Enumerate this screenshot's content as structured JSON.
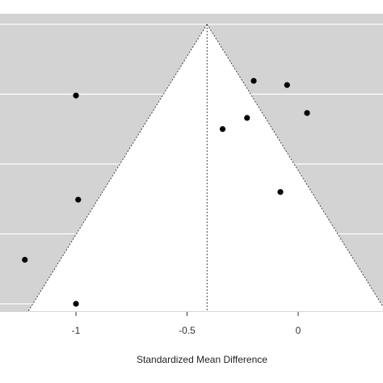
{
  "chart_data": {
    "type": "scatter",
    "subtype": "funnel",
    "title": "",
    "xlabel": "Standardized Mean Difference",
    "ylabel": "",
    "xlim": [
      -1.35,
      0.38
    ],
    "ylim": [
      0.4105,
      0.0
    ],
    "y_axis_inverted": true,
    "x_ticks": [
      -1,
      -0.5,
      0
    ],
    "x_tick_labels": [
      "-1",
      "-0.5",
      "0"
    ],
    "y_gridlines": [
      0.0,
      0.1,
      0.2,
      0.3,
      0.4
    ],
    "y_tick_labels_visible": false,
    "grid": true,
    "summary_estimate": -0.41,
    "funnel_halfwidth_per_se": 1.96,
    "points": [
      {
        "x": -1.0,
        "y": 0.102
      },
      {
        "x": -0.99,
        "y": 0.251
      },
      {
        "x": -1.23,
        "y": 0.337
      },
      {
        "x": -1.0,
        "y": 0.4
      },
      {
        "x": -0.34,
        "y": 0.15
      },
      {
        "x": -0.23,
        "y": 0.134
      },
      {
        "x": -0.2,
        "y": 0.081
      },
      {
        "x": -0.05,
        "y": 0.087
      },
      {
        "x": 0.04,
        "y": 0.127
      },
      {
        "x": -0.08,
        "y": 0.24
      }
    ],
    "colors": {
      "panel_background": "#d3d3d3",
      "funnel_fill": "#ffffff",
      "gridline": "#ffffff",
      "funnel_edge": "#333333",
      "point": "#000000"
    }
  }
}
